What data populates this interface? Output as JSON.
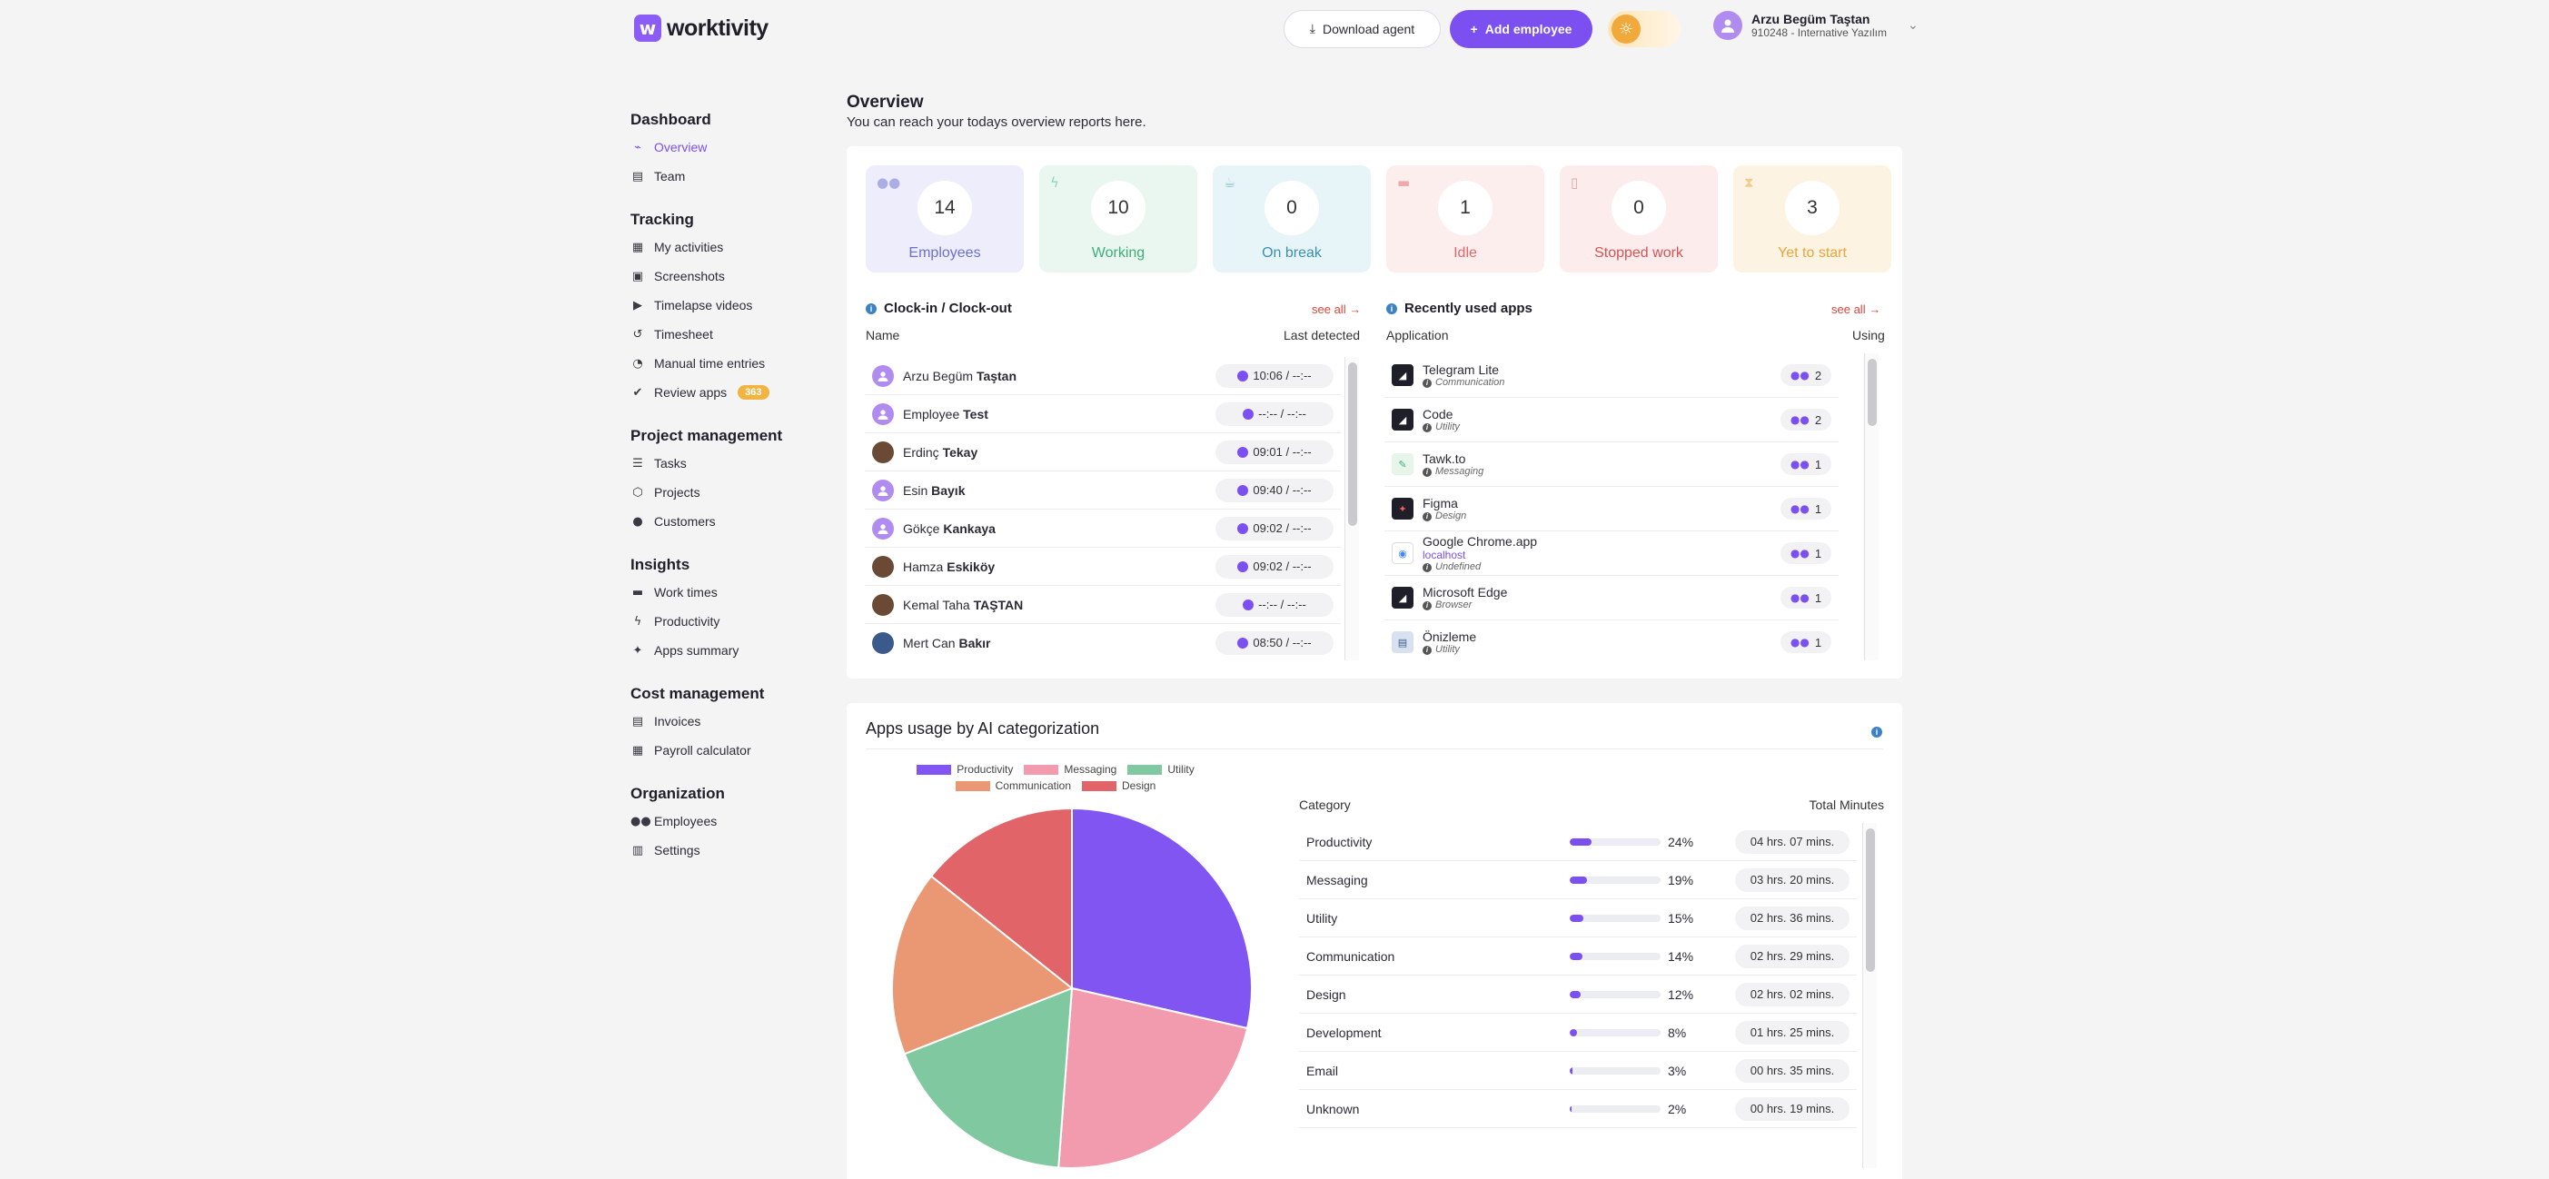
{
  "topbar": {
    "logo_text": "worktivity",
    "download_label": "Download agent",
    "add_label": "Add employee",
    "user_name": "Arzu Begüm Taştan",
    "user_org": "910248 - Internative Yazılım"
  },
  "sidebar": {
    "groups": [
      {
        "title": "Dashboard",
        "items": [
          {
            "label": "Overview",
            "icon": "chart-line-icon",
            "active": true
          },
          {
            "label": "Team",
            "icon": "layers-icon"
          }
        ]
      },
      {
        "title": "Tracking",
        "items": [
          {
            "label": "My activities",
            "icon": "activity-icon"
          },
          {
            "label": "Screenshots",
            "icon": "screenshot-icon"
          },
          {
            "label": "Timelapse videos",
            "icon": "video-icon"
          },
          {
            "label": "Timesheet",
            "icon": "history-icon"
          },
          {
            "label": "Manual time entries",
            "icon": "stopwatch-icon"
          },
          {
            "label": "Review apps",
            "icon": "check-circle-icon",
            "badge": "363"
          }
        ]
      },
      {
        "title": "Project management",
        "items": [
          {
            "label": "Tasks",
            "icon": "list-icon"
          },
          {
            "label": "Projects",
            "icon": "project-icon"
          },
          {
            "label": "Customers",
            "icon": "user-icon"
          }
        ]
      },
      {
        "title": "Insights",
        "items": [
          {
            "label": "Work times",
            "icon": "briefcase-icon"
          },
          {
            "label": "Productivity",
            "icon": "bolt-icon"
          },
          {
            "label": "Apps summary",
            "icon": "sparkle-icon"
          }
        ]
      },
      {
        "title": "Cost management",
        "items": [
          {
            "label": "Invoices",
            "icon": "invoice-icon"
          },
          {
            "label": "Payroll calculator",
            "icon": "calculator-icon"
          }
        ]
      },
      {
        "title": "Organization",
        "items": [
          {
            "label": "Employees",
            "icon": "users-icon"
          },
          {
            "label": "Settings",
            "icon": "settings-icon"
          }
        ]
      }
    ]
  },
  "overview": {
    "title": "Overview",
    "subtitle": "You can reach your todays overview reports here."
  },
  "stats": [
    {
      "value": "14",
      "label": "Employees",
      "bg": "#eeedfb",
      "color": "#6b6fd1"
    },
    {
      "value": "10",
      "label": "Working",
      "bg": "#eaf7f0",
      "color": "#3fae7a"
    },
    {
      "value": "0",
      "label": "On break",
      "bg": "#e8f5f8",
      "color": "#3a8fb0"
    },
    {
      "value": "1",
      "label": "Idle",
      "bg": "#fdeeee",
      "color": "#e0696b"
    },
    {
      "value": "0",
      "label": "Stopped work",
      "bg": "#fcecec",
      "color": "#d35556"
    },
    {
      "value": "3",
      "label": "Yet to start",
      "bg": "#fdf3e3",
      "color": "#e8a63a"
    }
  ],
  "clock": {
    "title": "Clock-in / Clock-out",
    "see_all": "see all →",
    "col_name": "Name",
    "col_last": "Last detected",
    "rows": [
      {
        "first": "Arzu Begüm",
        "last": "Taştan",
        "time": "10:06 / --:--",
        "avatar": "default"
      },
      {
        "first": "Employee",
        "last": "Test",
        "time": "--:-- / --:--",
        "avatar": "default"
      },
      {
        "first": "Erdinç",
        "last": "Tekay",
        "time": "09:01 / --:--",
        "avatar": "photo"
      },
      {
        "first": "Esin",
        "last": "Bayık",
        "time": "09:40 / --:--",
        "avatar": "default"
      },
      {
        "first": "Gökçe",
        "last": "Kankaya",
        "time": "09:02 / --:--",
        "avatar": "default"
      },
      {
        "first": "Hamza",
        "last": "Eskiköy",
        "time": "09:02 / --:--",
        "avatar": "photo"
      },
      {
        "first": "Kemal Taha",
        "last": "TAŞTAN",
        "time": "--:-- / --:--",
        "avatar": "photo"
      },
      {
        "first": "Mert Can",
        "last": "Bakır",
        "time": "08:50 / --:--",
        "avatar": "photo2"
      }
    ]
  },
  "apps": {
    "title": "Recently used apps",
    "see_all": "see all →",
    "col_app": "Application",
    "col_using": "Using",
    "rows": [
      {
        "name": "Telegram Lite",
        "category": "Communication",
        "count": "2"
      },
      {
        "name": "Code",
        "category": "Utility",
        "count": "2"
      },
      {
        "name": "Tawk.to",
        "category": "Messaging",
        "count": "1"
      },
      {
        "name": "Figma",
        "category": "Design",
        "count": "1"
      },
      {
        "name": "Google Chrome.app",
        "link": "localhost",
        "category": "Undefined",
        "count": "1"
      },
      {
        "name": "Microsoft Edge",
        "category": "Browser",
        "count": "1"
      },
      {
        "name": "Önizleme",
        "category": "Utility",
        "count": "1"
      }
    ]
  },
  "usage": {
    "title": "Apps usage by AI categorization",
    "col_category": "Category",
    "col_total": "Total Minutes",
    "categories": [
      {
        "name": "Productivity",
        "pct": "24%",
        "value": 24,
        "total": "04 hrs. 07 mins."
      },
      {
        "name": "Messaging",
        "pct": "19%",
        "value": 19,
        "total": "03 hrs. 20 mins."
      },
      {
        "name": "Utility",
        "pct": "15%",
        "value": 15,
        "total": "02 hrs. 36 mins."
      },
      {
        "name": "Communication",
        "pct": "14%",
        "value": 14,
        "total": "02 hrs. 29 mins."
      },
      {
        "name": "Design",
        "pct": "12%",
        "value": 12,
        "total": "02 hrs. 02 mins."
      },
      {
        "name": "Development",
        "pct": "8%",
        "value": 8,
        "total": "01 hrs. 25 mins."
      },
      {
        "name": "Email",
        "pct": "3%",
        "value": 3,
        "total": "00 hrs. 35 mins."
      },
      {
        "name": "Unknown",
        "pct": "2%",
        "value": 2,
        "total": "00 hrs. 19 mins."
      }
    ]
  },
  "chart_data": {
    "type": "pie",
    "categories": [
      "Productivity",
      "Messaging",
      "Utility",
      "Communication",
      "Design"
    ],
    "values": [
      24,
      19,
      15,
      14,
      12
    ],
    "colors": [
      "#8155f2",
      "#f29aae",
      "#80c9a0",
      "#ea9874",
      "#e06468"
    ],
    "legend_position": "top"
  }
}
